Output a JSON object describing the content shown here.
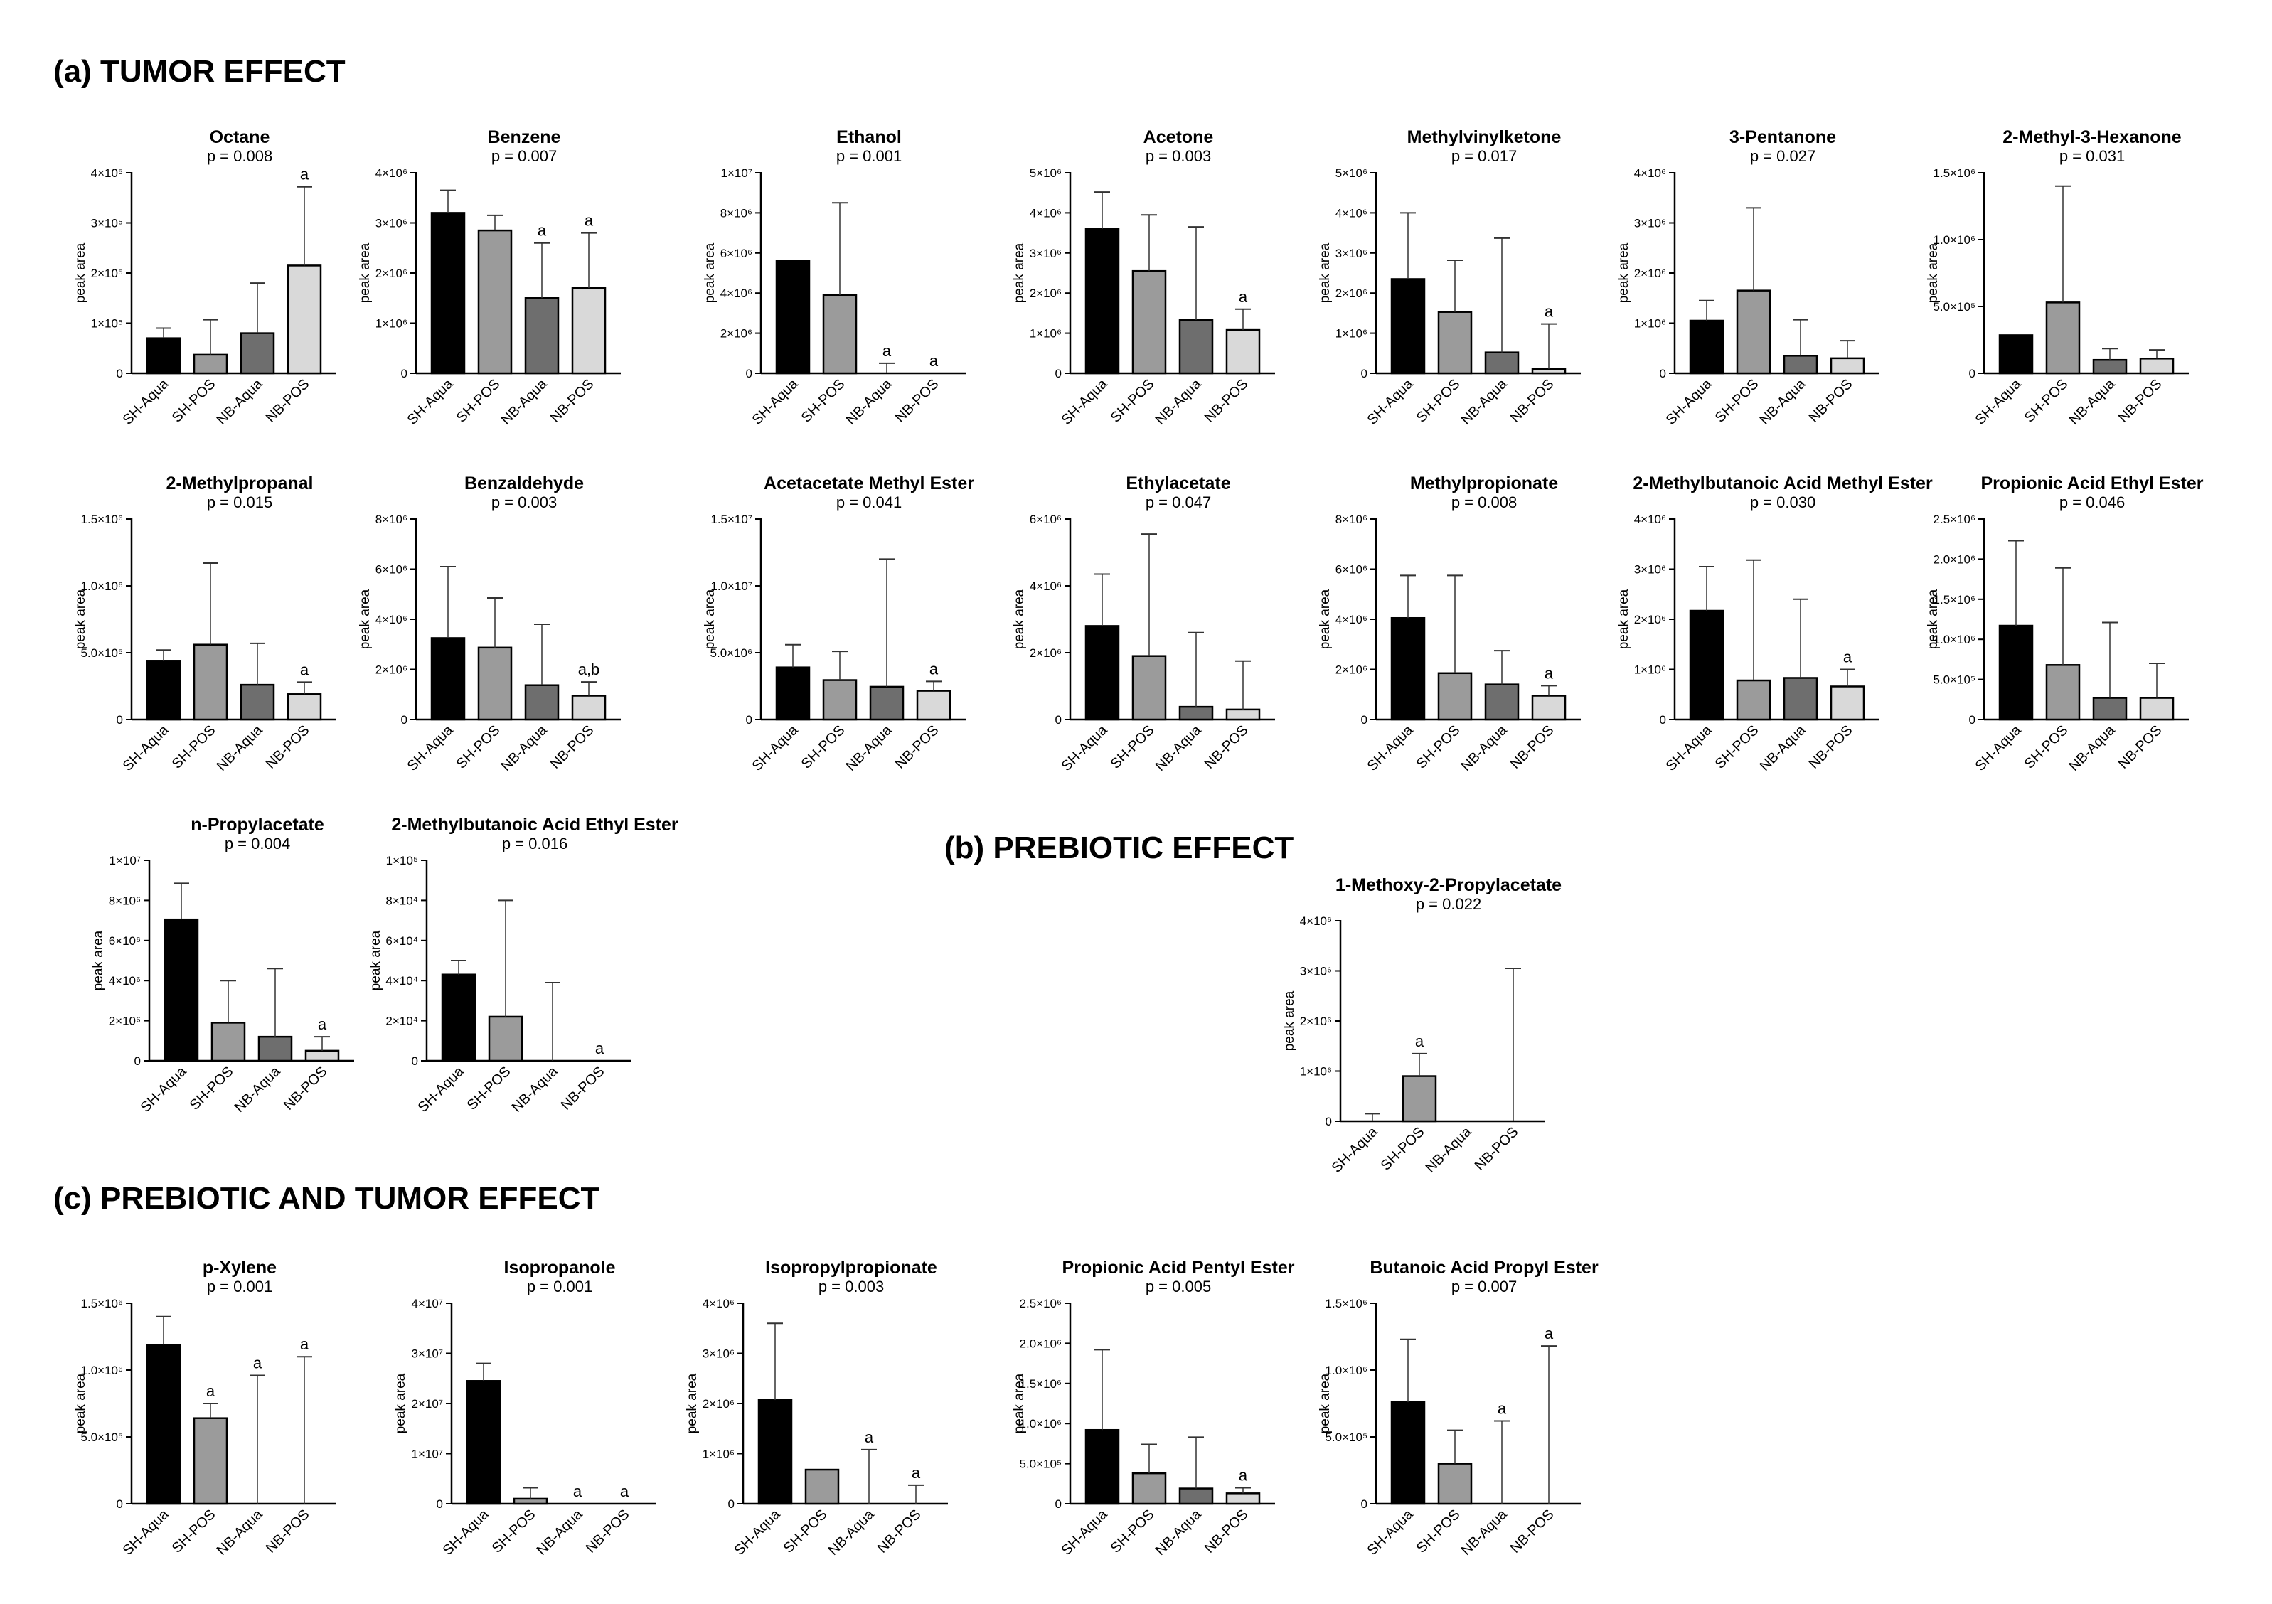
{
  "sections": {
    "a": "(a) TUMOR EFFECT",
    "b": "(b) PREBIOTIC  EFFECT",
    "c": "(c) PREBIOTIC AND TUMOR EFFECT"
  },
  "colors": [
    "#000000",
    "#9b9b9b",
    "#6e6e6e",
    "#d9d9d9"
  ],
  "chart_data": [
    {
      "type": "bar",
      "title": "Octane",
      "p": "p = 0.008",
      "ylabel": "peak area",
      "categories": [
        "SH-Aqua",
        "SH-POS",
        "NB-Aqua",
        "NB-POS"
      ],
      "values": [
        70000,
        37000,
        80000,
        215000
      ],
      "errors": [
        90000,
        107000,
        180000,
        372000
      ],
      "sig": [
        "",
        "",
        "",
        "a"
      ],
      "yticks": [
        0,
        100000,
        200000,
        300000,
        400000
      ],
      "yticklabels": [
        "0",
        "1×10⁵",
        "2×10⁵",
        "3×10⁵",
        "4×10⁵"
      ],
      "ylim": [
        0,
        400000
      ]
    },
    {
      "type": "bar",
      "title": "Benzene",
      "p": "p = 0.007",
      "ylabel": "peak area",
      "categories": [
        "SH-Aqua",
        "SH-POS",
        "NB-Aqua",
        "NB-POS"
      ],
      "values": [
        3200000,
        2850000,
        1500000,
        1700000
      ],
      "errors": [
        3650000,
        3150000,
        2600000,
        2800000
      ],
      "sig": [
        "",
        "",
        "a",
        "a"
      ],
      "yticks": [
        0,
        1000000,
        2000000,
        3000000,
        4000000
      ],
      "yticklabels": [
        "0",
        "1×10⁶",
        "2×10⁶",
        "3×10⁶",
        "4×10⁶"
      ],
      "ylim": [
        0,
        4000000
      ]
    },
    {
      "type": "bar",
      "title": "Ethanol",
      "p": "p = 0.001",
      "ylabel": "peak area",
      "categories": [
        "SH-Aqua",
        "SH-POS",
        "NB-Aqua",
        "NB-POS"
      ],
      "values": [
        5600000,
        3900000,
        0,
        0
      ],
      "errors": [
        5600000,
        8500000,
        500000,
        0
      ],
      "sig": [
        "",
        "",
        "a",
        "a"
      ],
      "yticks": [
        0,
        2000000,
        4000000,
        6000000,
        8000000,
        10000000
      ],
      "yticklabels": [
        "0",
        "2×10⁶",
        "4×10⁶",
        "6×10⁶",
        "8×10⁶",
        "1×10⁷"
      ],
      "ylim": [
        0,
        10000000
      ]
    },
    {
      "type": "bar",
      "title": "Acetone",
      "p": "p = 0.003",
      "ylabel": "peak area",
      "categories": [
        "SH-Aqua",
        "SH-POS",
        "NB-Aqua",
        "NB-POS"
      ],
      "values": [
        3600000,
        2550000,
        1330000,
        1080000
      ],
      "errors": [
        4520000,
        3950000,
        3650000,
        1600000
      ],
      "sig": [
        "",
        "",
        "",
        "a"
      ],
      "yticks": [
        0,
        1000000,
        2000000,
        3000000,
        4000000,
        5000000
      ],
      "yticklabels": [
        "0",
        "1×10⁶",
        "2×10⁶",
        "3×10⁶",
        "4×10⁶",
        "5×10⁶"
      ],
      "ylim": [
        0,
        5000000
      ]
    },
    {
      "type": "bar",
      "title": "Methylvinylketone",
      "p": "p = 0.017",
      "ylabel": "peak area",
      "categories": [
        "SH-Aqua",
        "SH-POS",
        "NB-Aqua",
        "NB-POS"
      ],
      "values": [
        2350000,
        1530000,
        520000,
        110000
      ],
      "errors": [
        4000000,
        2820000,
        3370000,
        1230000
      ],
      "sig": [
        "",
        "",
        "",
        "a"
      ],
      "yticks": [
        0,
        1000000,
        2000000,
        3000000,
        4000000,
        5000000
      ],
      "yticklabels": [
        "0",
        "1×10⁶",
        "2×10⁶",
        "3×10⁶",
        "4×10⁶",
        "5×10⁶"
      ],
      "ylim": [
        0,
        5000000
      ]
    },
    {
      "type": "bar",
      "title": "3-Pentanone",
      "p": "p = 0.027",
      "ylabel": "peak area",
      "categories": [
        "SH-Aqua",
        "SH-POS",
        "NB-Aqua",
        "NB-POS"
      ],
      "values": [
        1050000,
        1650000,
        350000,
        300000
      ],
      "errors": [
        1450000,
        3300000,
        1070000,
        650000
      ],
      "sig": [
        "",
        "",
        "",
        ""
      ],
      "yticks": [
        0,
        1000000,
        2000000,
        3000000,
        4000000
      ],
      "yticklabels": [
        "0",
        "1×10⁶",
        "2×10⁶",
        "3×10⁶",
        "4×10⁶"
      ],
      "ylim": [
        0,
        4000000
      ]
    },
    {
      "type": "bar",
      "title": "2-Methyl-3-Hexanone",
      "p": "p = 0.031",
      "ylabel": "peak area",
      "categories": [
        "SH-Aqua",
        "SH-POS",
        "NB-Aqua",
        "NB-POS"
      ],
      "values": [
        285000,
        530000,
        100000,
        110000
      ],
      "errors": [
        285000,
        1400000,
        185000,
        175000
      ],
      "sig": [
        "",
        "",
        "",
        ""
      ],
      "yticks": [
        0,
        500000,
        1000000,
        1500000
      ],
      "yticklabels": [
        "0",
        "5.0×10⁵",
        "1.0×10⁶",
        "1.5×10⁶"
      ],
      "ylim": [
        0,
        1500000
      ]
    },
    {
      "type": "bar",
      "title": "2-Methylpropanal",
      "p": "p = 0.015",
      "ylabel": "peak area",
      "categories": [
        "SH-Aqua",
        "SH-POS",
        "NB-Aqua",
        "NB-POS"
      ],
      "values": [
        440000,
        560000,
        260000,
        190000
      ],
      "errors": [
        520000,
        1170000,
        570000,
        280000
      ],
      "sig": [
        "",
        "",
        "",
        "a"
      ],
      "yticks": [
        0,
        500000,
        1000000,
        1500000
      ],
      "yticklabels": [
        "0",
        "5.0×10⁵",
        "1.0×10⁶",
        "1.5×10⁶"
      ],
      "ylim": [
        0,
        1500000
      ]
    },
    {
      "type": "bar",
      "title": "Benzaldehyde",
      "p": "p = 0.003",
      "ylabel": "peak area",
      "categories": [
        "SH-Aqua",
        "SH-POS",
        "NB-Aqua",
        "NB-POS"
      ],
      "values": [
        3250000,
        2870000,
        1370000,
        950000
      ],
      "errors": [
        6100000,
        4850000,
        3800000,
        1500000
      ],
      "sig": [
        "",
        "",
        "",
        "a,b"
      ],
      "yticks": [
        0,
        2000000,
        4000000,
        6000000,
        8000000
      ],
      "yticklabels": [
        "0",
        "2×10⁶",
        "4×10⁶",
        "6×10⁶",
        "8×10⁶"
      ],
      "ylim": [
        0,
        8000000
      ]
    },
    {
      "type": "bar",
      "title": "Acetacetate Methyl Ester",
      "p": "p = 0.041",
      "ylabel": "peak area",
      "categories": [
        "SH-Aqua",
        "SH-POS",
        "NB-Aqua",
        "NB-POS"
      ],
      "values": [
        3900000,
        2950000,
        2450000,
        2150000
      ],
      "errors": [
        5600000,
        5100000,
        12000000,
        2850000
      ],
      "sig": [
        "",
        "",
        "",
        "a"
      ],
      "yticks": [
        0,
        5000000,
        10000000,
        15000000
      ],
      "yticklabels": [
        "0",
        "5.0×10⁶",
        "1.0×10⁷",
        "1.5×10⁷"
      ],
      "ylim": [
        0,
        15000000
      ]
    },
    {
      "type": "bar",
      "title": "Ethylacetate",
      "p": "p = 0.047",
      "ylabel": "peak area",
      "categories": [
        "SH-Aqua",
        "SH-POS",
        "NB-Aqua",
        "NB-POS"
      ],
      "values": [
        2800000,
        1900000,
        380000,
        300000
      ],
      "errors": [
        4350000,
        5550000,
        2600000,
        1750000
      ],
      "sig": [
        "",
        "",
        "",
        ""
      ],
      "yticks": [
        0,
        2000000,
        4000000,
        6000000
      ],
      "yticklabels": [
        "0",
        "2×10⁶",
        "4×10⁶",
        "6×10⁶"
      ],
      "ylim": [
        0,
        6000000
      ]
    },
    {
      "type": "bar",
      "title": "Methylpropionate",
      "p": "p = 0.008",
      "ylabel": "peak area",
      "categories": [
        "SH-Aqua",
        "SH-POS",
        "NB-Aqua",
        "NB-POS"
      ],
      "values": [
        4050000,
        1850000,
        1400000,
        950000
      ],
      "errors": [
        5750000,
        5750000,
        2750000,
        1350000
      ],
      "sig": [
        "",
        "",
        "",
        "a"
      ],
      "yticks": [
        0,
        2000000,
        4000000,
        6000000,
        8000000
      ],
      "yticklabels": [
        "0",
        "2×10⁶",
        "4×10⁶",
        "6×10⁶",
        "8×10⁶"
      ],
      "ylim": [
        0,
        8000000
      ]
    },
    {
      "type": "bar",
      "title": "2-Methylbutanoic Acid Methyl Ester",
      "p": "p = 0.030",
      "ylabel": "peak area",
      "categories": [
        "SH-Aqua",
        "SH-POS",
        "NB-Aqua",
        "NB-POS"
      ],
      "values": [
        2170000,
        780000,
        830000,
        660000
      ],
      "errors": [
        3050000,
        3180000,
        2400000,
        1000000
      ],
      "sig": [
        "",
        "",
        "",
        "a"
      ],
      "yticks": [
        0,
        1000000,
        2000000,
        3000000,
        4000000
      ],
      "yticklabels": [
        "0",
        "1×10⁶",
        "2×10⁶",
        "3×10⁶",
        "4×10⁶"
      ],
      "ylim": [
        0,
        4000000
      ]
    },
    {
      "type": "bar",
      "title": "Propionic Acid Ethyl Ester",
      "p": "p = 0.046",
      "ylabel": "peak area",
      "categories": [
        "SH-Aqua",
        "SH-POS",
        "NB-Aqua",
        "NB-POS"
      ],
      "values": [
        1170000,
        680000,
        270000,
        270000
      ],
      "errors": [
        2230000,
        1890000,
        1210000,
        700000
      ],
      "sig": [
        "",
        "",
        "",
        ""
      ],
      "yticks": [
        0,
        500000,
        1000000,
        1500000,
        2000000,
        2500000
      ],
      "yticklabels": [
        "0",
        "5.0×10⁵",
        "1.0×10⁶",
        "1.5×10⁶",
        "2.0×10⁶",
        "2.5×10⁶"
      ],
      "ylim": [
        0,
        2500000
      ]
    },
    {
      "type": "bar",
      "title": "n-Propylacetate",
      "p": "p = 0.004",
      "ylabel": "peak area",
      "categories": [
        "SH-Aqua",
        "SH-POS",
        "NB-Aqua",
        "NB-POS"
      ],
      "values": [
        7050000,
        1900000,
        1200000,
        500000
      ],
      "errors": [
        8850000,
        4000000,
        4600000,
        1200000
      ],
      "sig": [
        "",
        "",
        "",
        "a"
      ],
      "yticks": [
        0,
        2000000,
        4000000,
        6000000,
        8000000,
        10000000
      ],
      "yticklabels": [
        "0",
        "2×10⁶",
        "4×10⁶",
        "6×10⁶",
        "8×10⁶",
        "1×10⁷"
      ],
      "ylim": [
        0,
        10000000
      ]
    },
    {
      "type": "bar",
      "title": "2-Methylbutanoic Acid Ethyl Ester",
      "p": "p = 0.016",
      "ylabel": "peak area",
      "categories": [
        "SH-Aqua",
        "SH-POS",
        "NB-Aqua",
        "NB-POS"
      ],
      "values": [
        43000,
        22000,
        0,
        0
      ],
      "errors": [
        50000,
        80000,
        39000,
        0
      ],
      "sig": [
        "",
        "",
        "",
        "a"
      ],
      "yticks": [
        0,
        20000,
        40000,
        60000,
        80000,
        100000
      ],
      "yticklabels": [
        "0",
        "2×10⁴",
        "4×10⁴",
        "6×10⁴",
        "8×10⁴",
        "1×10⁵"
      ],
      "ylim": [
        0,
        100000
      ]
    },
    {
      "type": "bar",
      "title": "1-Methoxy-2-Propylacetate",
      "p": "p = 0.022",
      "ylabel": "peak area",
      "categories": [
        "SH-Aqua",
        "SH-POS",
        "NB-Aqua",
        "NB-POS"
      ],
      "values": [
        0,
        900000,
        0,
        0
      ],
      "errors": [
        150000,
        1350000,
        0,
        3050000
      ],
      "sig": [
        "",
        "a",
        "",
        ""
      ],
      "yticks": [
        0,
        1000000,
        2000000,
        3000000,
        4000000
      ],
      "yticklabels": [
        "0",
        "1×10⁶",
        "2×10⁶",
        "3×10⁶",
        "4×10⁶"
      ],
      "ylim": [
        0,
        4000000
      ]
    },
    {
      "type": "bar",
      "title": "p-Xylene",
      "p": "p = 0.001",
      "ylabel": "peak area",
      "categories": [
        "SH-Aqua",
        "SH-POS",
        "NB-Aqua",
        "NB-POS"
      ],
      "values": [
        1190000,
        640000,
        0,
        0
      ],
      "errors": [
        1400000,
        750000,
        960000,
        1100000
      ],
      "sig": [
        "",
        "a",
        "a",
        "a"
      ],
      "yticks": [
        0,
        500000,
        1000000,
        1500000
      ],
      "yticklabels": [
        "0",
        "5.0×10⁵",
        "1.0×10⁶",
        "1.5×10⁶"
      ],
      "ylim": [
        0,
        1500000
      ]
    },
    {
      "type": "bar",
      "title": "Isopropanole",
      "p": "p = 0.001",
      "ylabel": "peak area",
      "categories": [
        "SH-Aqua",
        "SH-POS",
        "NB-Aqua",
        "NB-POS"
      ],
      "values": [
        24500000,
        1000000,
        0,
        0
      ],
      "errors": [
        28000000,
        3200000,
        0,
        0
      ],
      "sig": [
        "",
        "",
        "a",
        "a"
      ],
      "yticks": [
        0,
        10000000,
        20000000,
        30000000,
        40000000
      ],
      "yticklabels": [
        "0",
        "1×10⁷",
        "2×10⁷",
        "3×10⁷",
        "4×10⁷"
      ],
      "ylim": [
        0,
        40000000
      ]
    },
    {
      "type": "bar",
      "title": "Isopropylpropionate",
      "p": "p = 0.003",
      "ylabel": "peak area",
      "categories": [
        "SH-Aqua",
        "SH-POS",
        "NB-Aqua",
        "NB-POS"
      ],
      "values": [
        2070000,
        680000,
        0,
        0
      ],
      "errors": [
        3600000,
        680000,
        1080000,
        370000
      ],
      "sig": [
        "",
        "",
        "a",
        "a"
      ],
      "yticks": [
        0,
        1000000,
        2000000,
        3000000,
        4000000
      ],
      "yticklabels": [
        "0",
        "1×10⁶",
        "2×10⁶",
        "3×10⁶",
        "4×10⁶"
      ],
      "ylim": [
        0,
        4000000
      ]
    },
    {
      "type": "bar",
      "title": "Propionic Acid Pentyl Ester",
      "p": "p = 0.005",
      "ylabel": "peak area",
      "categories": [
        "SH-Aqua",
        "SH-POS",
        "NB-Aqua",
        "NB-POS"
      ],
      "values": [
        920000,
        380000,
        190000,
        130000
      ],
      "errors": [
        1920000,
        740000,
        830000,
        200000
      ],
      "sig": [
        "",
        "",
        "",
        "a"
      ],
      "yticks": [
        0,
        500000,
        1000000,
        1500000,
        2000000,
        2500000
      ],
      "yticklabels": [
        "0",
        "5.0×10⁵",
        "1.0×10⁶",
        "1.5×10⁶",
        "2.0×10⁶",
        "2.5×10⁶"
      ],
      "ylim": [
        0,
        2500000
      ]
    },
    {
      "type": "bar",
      "title": "Butanoic Acid Propyl Ester",
      "p": "p = 0.007",
      "ylabel": "peak area",
      "categories": [
        "SH-Aqua",
        "SH-POS",
        "NB-Aqua",
        "NB-POS"
      ],
      "values": [
        760000,
        300000,
        0,
        0
      ],
      "errors": [
        1230000,
        550000,
        620000,
        1180000
      ],
      "sig": [
        "",
        "",
        "a",
        "a"
      ],
      "yticks": [
        0,
        500000,
        1000000,
        1500000
      ],
      "yticklabels": [
        "0",
        "5.0×10⁵",
        "1.0×10⁶",
        "1.5×10⁶"
      ],
      "ylim": [
        0,
        1500000
      ]
    }
  ]
}
